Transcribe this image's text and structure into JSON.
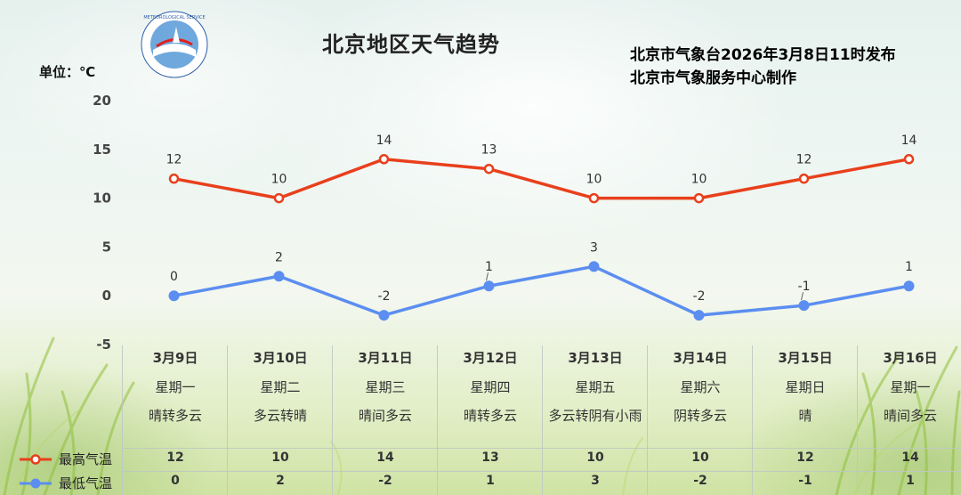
{
  "header": {
    "title": "北京地区天气趋势",
    "publisher_line1": "北京市气象台2026年3月8日11时发布",
    "publisher_line2": "北京市气象服务中心制作",
    "unit": "单位：℃"
  },
  "logo": {
    "icon": "meteorological-service-logo-icon",
    "text": "METEOROLOGICAL SERVICE"
  },
  "colors": {
    "high": "#e8401c",
    "low": "#5b8ef0"
  },
  "chart_data": {
    "type": "line",
    "title": "北京地区天气趋势",
    "ylabel": "单位：℃",
    "ylim": [
      -5,
      20
    ],
    "yticks": [
      "20",
      "15",
      "10",
      "5",
      "0",
      "-5"
    ],
    "categories": [
      "3月9日",
      "3月10日",
      "3月11日",
      "3月12日",
      "3月13日",
      "3月14日",
      "3月15日",
      "3月16日"
    ],
    "weekdays": [
      "星期一",
      "星期二",
      "星期三",
      "星期四",
      "星期五",
      "星期六",
      "星期日",
      "星期一"
    ],
    "weather": [
      "晴转多云",
      "多云转晴",
      "晴间多云",
      "晴转多云",
      "多云转阴有小雨",
      "阴转多云",
      "晴",
      "晴间多云"
    ],
    "series": [
      {
        "name": "最高气温",
        "values": [
          12,
          10,
          14,
          13,
          10,
          10,
          12,
          14
        ],
        "labels": [
          "12",
          "10",
          "14",
          "13",
          "10",
          "10",
          "12",
          "14"
        ]
      },
      {
        "name": "最低气温",
        "values": [
          0,
          2,
          -2,
          1,
          3,
          -2,
          -1,
          1
        ],
        "labels": [
          "0",
          "2",
          "-2",
          "1",
          "3",
          "-2",
          "-1",
          "1"
        ]
      }
    ],
    "grid": false,
    "legend": "bottom-left"
  }
}
